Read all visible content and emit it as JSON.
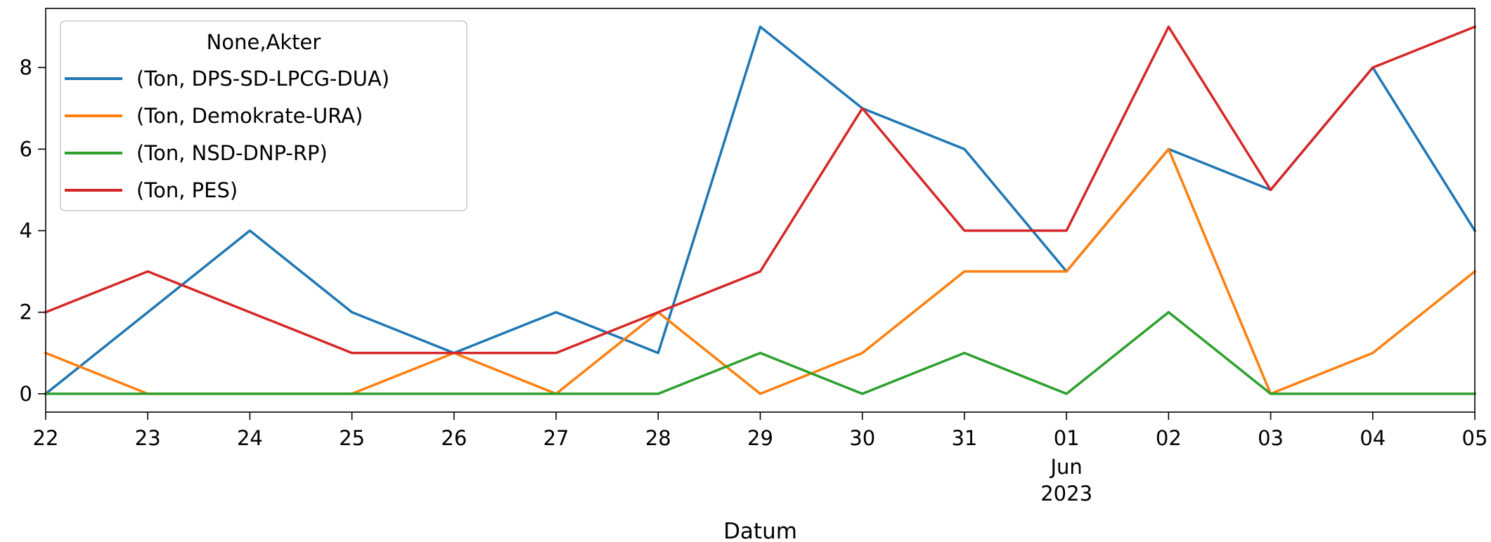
{
  "chart_data": {
    "type": "line",
    "title": "",
    "xlabel": "Datum",
    "ylabel": "",
    "x": [
      "22",
      "23",
      "24",
      "25",
      "26",
      "27",
      "28",
      "29",
      "30",
      "31",
      "01",
      "02",
      "03",
      "04",
      "05"
    ],
    "x_month_label": "Jun",
    "x_year_label": "2023",
    "x_month_label_at": "01",
    "ylim": [
      -0.45,
      9.45
    ],
    "yticks": [
      0,
      2,
      4,
      6,
      8
    ],
    "grid": false,
    "legend": {
      "title": "None,Akter",
      "placement": "upper-left"
    },
    "series": [
      {
        "name": "(Ton, DPS-SD-LPCG-DUA)",
        "color": "#1f77b4",
        "values": [
          0,
          2,
          4,
          2,
          1,
          2,
          1,
          9,
          7,
          6,
          3,
          6,
          5,
          8,
          4
        ]
      },
      {
        "name": "(Ton, Demokrate-URA)",
        "color": "#ff7f0e",
        "values": [
          1,
          0,
          0,
          0,
          1,
          0,
          2,
          0,
          1,
          3,
          3,
          6,
          0,
          1,
          3
        ]
      },
      {
        "name": "(Ton, NSD-DNP-RP)",
        "color": "#2ca02c",
        "values": [
          0,
          0,
          0,
          0,
          0,
          0,
          0,
          1,
          0,
          1,
          0,
          2,
          0,
          0,
          0
        ]
      },
      {
        "name": "(Ton, PES)",
        "color": "#d62728",
        "values": [
          2,
          3,
          2,
          1,
          1,
          1,
          2,
          3,
          7,
          4,
          4,
          9,
          5,
          8,
          9
        ]
      }
    ]
  }
}
